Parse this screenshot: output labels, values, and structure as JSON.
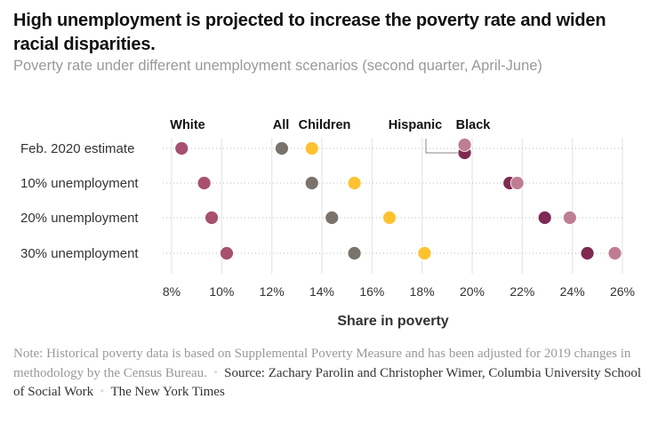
{
  "header": {
    "title": "High unemployment is projected to increase the poverty rate and widen racial disparities.",
    "subtitle": "Poverty rate under different unemployment scenarios (second quarter, April-June)"
  },
  "chart_data": {
    "type": "scatter",
    "title": "High unemployment is projected to increase the poverty rate and widen racial disparities.",
    "subtitle": "Poverty rate under different unemployment scenarios (second quarter, April-June)",
    "xlabel": "Share in poverty",
    "ylabel": "",
    "xlim": [
      8,
      26
    ],
    "x_ticks": [
      "8%",
      "10%",
      "12%",
      "14%",
      "16%",
      "18%",
      "20%",
      "22%",
      "24%",
      "26%"
    ],
    "x_tick_values": [
      8,
      10,
      12,
      14,
      16,
      18,
      20,
      22,
      24,
      26
    ],
    "categories": [
      "Feb. 2020 estimate",
      "10% unemployment",
      "20% unemployment",
      "30% unemployment"
    ],
    "grid": true,
    "series": [
      {
        "name": "White",
        "color": "#a8506f",
        "values": [
          8.4,
          9.3,
          9.6,
          10.2
        ]
      },
      {
        "name": "All",
        "color": "#7a736c",
        "values": [
          12.4,
          13.6,
          14.4,
          15.3
        ]
      },
      {
        "name": "Children",
        "color": "#fdc22f",
        "values": [
          13.6,
          15.3,
          16.7,
          18.1
        ]
      },
      {
        "name": "Hispanic",
        "color": "#7f2a52",
        "values": [
          19.7,
          21.5,
          22.9,
          24.6
        ]
      },
      {
        "name": "Black",
        "color": "#bf7d95",
        "values": [
          19.7,
          21.8,
          23.9,
          25.7
        ]
      }
    ]
  },
  "footer": {
    "note": "Note: Historical poverty data is based on Supplemental Poverty Measure and has been adjusted for 2019 changes in methodology by the Census Bureau.",
    "source": "Source: Zachary Parolin and Christopher Wimer, Columbia University School of Social Work",
    "credit": "The New York Times"
  }
}
